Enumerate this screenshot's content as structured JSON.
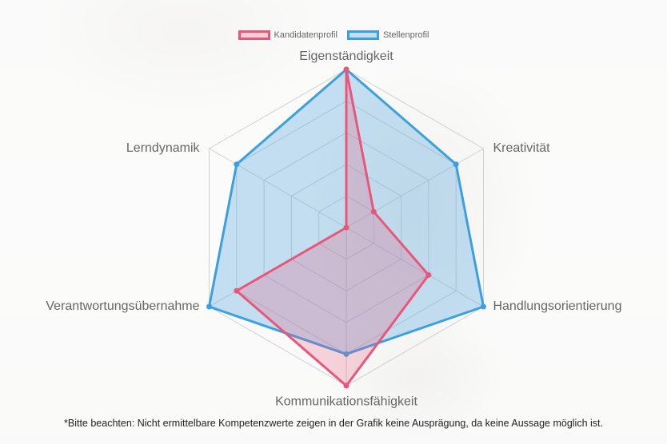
{
  "chart_data": {
    "type": "radar",
    "axes": [
      "Eigenständigkeit",
      "Kreativität",
      "Handlungsorientierung",
      "Kommunikationsfähigkeit",
      "Verantwortungsübernahme",
      "Lerndynamik"
    ],
    "rmax": 5,
    "gridlines": true,
    "legend_position": "top-center",
    "series": [
      {
        "name": "Kandidatenprofil",
        "values": [
          5,
          1,
          3,
          5,
          4,
          0
        ],
        "color": "#e8577a",
        "fill": "rgba(232,87,122,0.25)"
      },
      {
        "name": "Stellenprofil",
        "values": [
          5,
          4,
          5,
          4,
          5,
          4
        ],
        "color": "#3ca0e0",
        "fill": "rgba(90,170,220,0.35)"
      }
    ]
  },
  "footnote": "*Bitte beachten: Nicht ermittelbare Kompetenzwerte zeigen in der Grafik keine Ausprägung, da keine Aussage möglich ist."
}
